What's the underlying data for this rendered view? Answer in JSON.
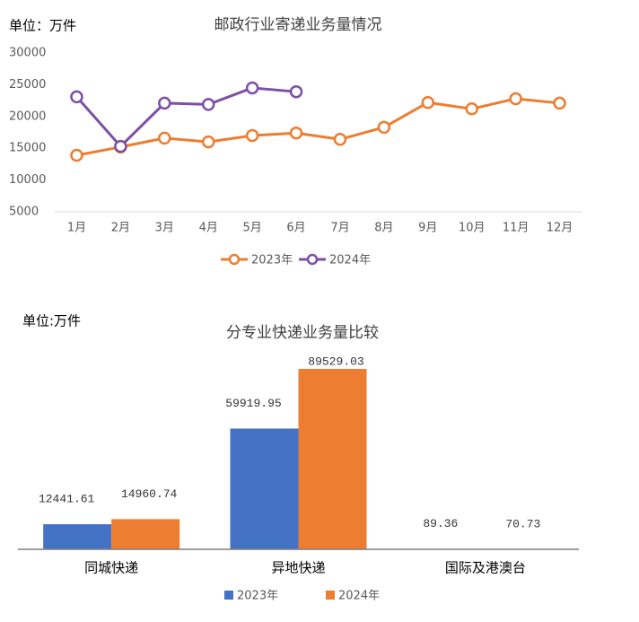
{
  "chart_data": [
    {
      "type": "line",
      "title": "邮政行业寄递业务量情况",
      "unit_label": "单位：万件",
      "categories": [
        "1月",
        "2月",
        "3月",
        "4月",
        "5月",
        "6月",
        "7月",
        "8月",
        "9月",
        "10月",
        "11月",
        "12月"
      ],
      "series": [
        {
          "name": "2023年",
          "color": "#ED7D31",
          "values": [
            13900,
            15200,
            16600,
            16000,
            17000,
            17400,
            16400,
            18300,
            22200,
            21200,
            22800,
            22100
          ]
        },
        {
          "name": "2024年",
          "color": "#7E4FA6",
          "values": [
            23100,
            15300,
            22100,
            21900,
            24500,
            23900,
            null,
            null,
            null,
            null,
            null,
            null
          ]
        }
      ],
      "ylim": [
        5000,
        30000
      ],
      "yticks": [
        5000,
        10000,
        15000,
        20000,
        25000,
        30000
      ],
      "grid": false,
      "legend": "bottom"
    },
    {
      "type": "bar",
      "title": "分专业快递业务量比较",
      "unit_label": "单位:万件",
      "categories": [
        "同城快递",
        "异地快递",
        "国际及港澳台"
      ],
      "series": [
        {
          "name": "2023年",
          "color": "#4472C4",
          "values": [
            12441.61,
            59919.95,
            89.36
          ]
        },
        {
          "name": "2024年",
          "color": "#ED7D31",
          "values": [
            14960.74,
            89529.03,
            70.73
          ]
        }
      ],
      "legend": "bottom"
    }
  ]
}
